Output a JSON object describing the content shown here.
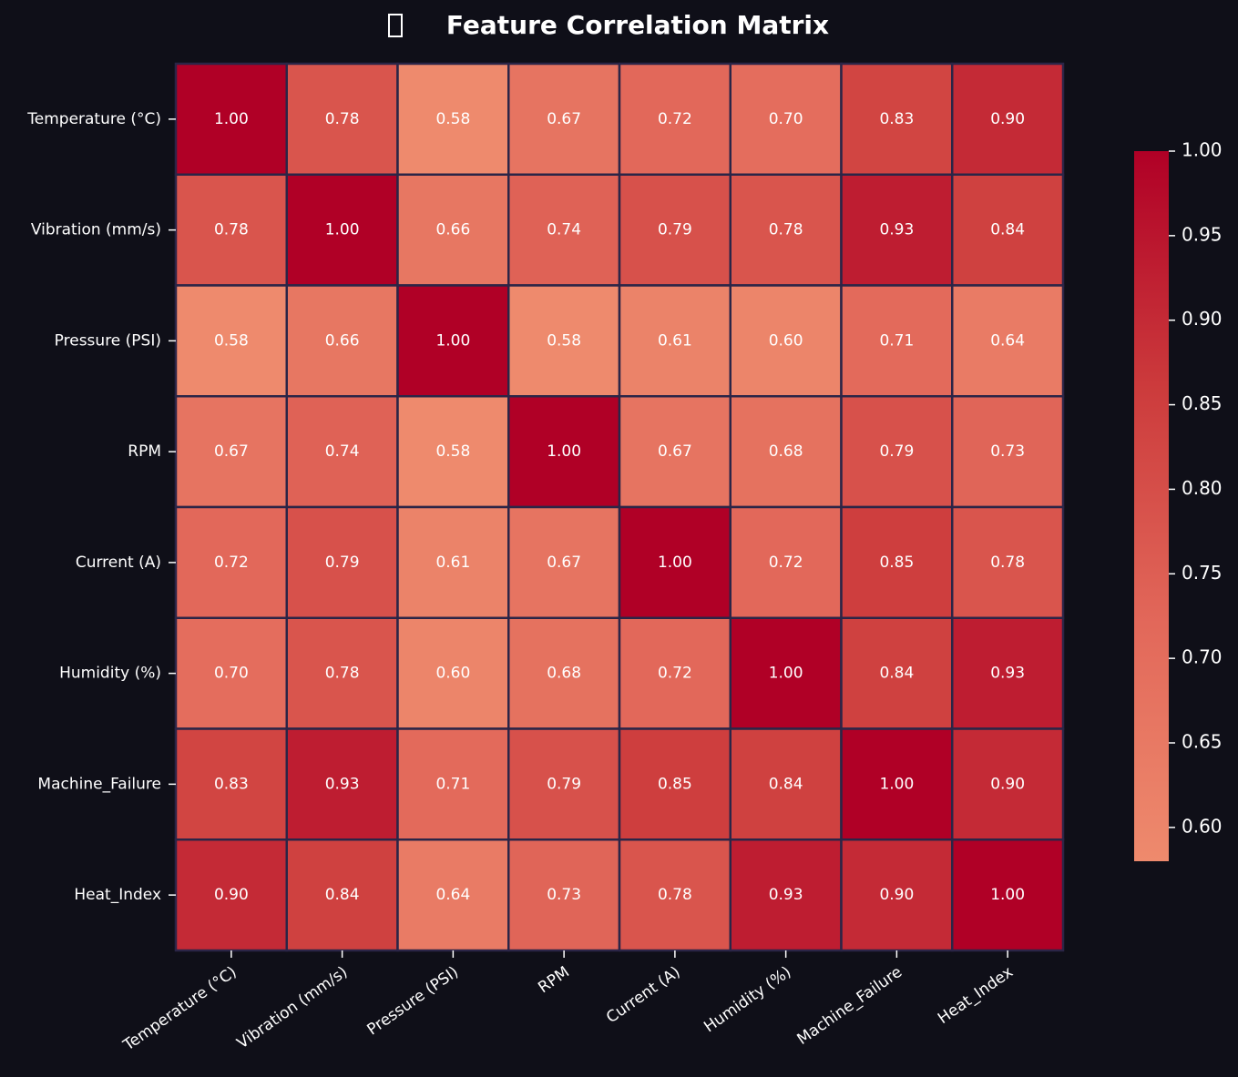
{
  "chart_data": {
    "type": "heatmap",
    "title": "Feature Correlation Matrix",
    "rows": [
      "Temperature (°C)",
      "Vibration (mm/s)",
      "Pressure (PSI)",
      "RPM",
      "Current (A)",
      "Humidity (%)",
      "Machine_Failure",
      "Heat_Index"
    ],
    "columns": [
      "Temperature (°C)",
      "Vibration (mm/s)",
      "Pressure (PSI)",
      "RPM",
      "Current (A)",
      "Humidity (%)",
      "Machine_Failure",
      "Heat_Index"
    ],
    "values": [
      [
        1.0,
        0.78,
        0.58,
        0.67,
        0.72,
        0.7,
        0.83,
        0.9
      ],
      [
        0.78,
        1.0,
        0.66,
        0.74,
        0.79,
        0.78,
        0.93,
        0.84
      ],
      [
        0.58,
        0.66,
        1.0,
        0.58,
        0.61,
        0.6,
        0.71,
        0.64
      ],
      [
        0.67,
        0.74,
        0.58,
        1.0,
        0.67,
        0.68,
        0.79,
        0.73
      ],
      [
        0.72,
        0.79,
        0.61,
        0.67,
        1.0,
        0.72,
        0.85,
        0.78
      ],
      [
        0.7,
        0.78,
        0.6,
        0.68,
        0.72,
        1.0,
        0.84,
        0.93
      ],
      [
        0.83,
        0.93,
        0.71,
        0.79,
        0.85,
        0.84,
        1.0,
        0.9
      ],
      [
        0.9,
        0.84,
        0.64,
        0.73,
        0.78,
        0.93,
        0.9,
        1.0
      ]
    ],
    "value_labels": [
      [
        "1.00",
        "0.78",
        "0.58",
        "0.67",
        "0.72",
        "0.70",
        "0.83",
        "0.90"
      ],
      [
        "0.78",
        "1.00",
        "0.66",
        "0.74",
        "0.79",
        "0.78",
        "0.93",
        "0.84"
      ],
      [
        "0.58",
        "0.66",
        "1.00",
        "0.58",
        "0.61",
        "0.60",
        "0.71",
        "0.64"
      ],
      [
        "0.67",
        "0.74",
        "0.58",
        "1.00",
        "0.67",
        "0.68",
        "0.79",
        "0.73"
      ],
      [
        "0.72",
        "0.79",
        "0.61",
        "0.67",
        "1.00",
        "0.72",
        "0.85",
        "0.78"
      ],
      [
        "0.70",
        "0.78",
        "0.60",
        "0.68",
        "0.72",
        "1.00",
        "0.84",
        "0.93"
      ],
      [
        "0.83",
        "0.93",
        "0.71",
        "0.79",
        "0.85",
        "0.84",
        "1.00",
        "0.90"
      ],
      [
        "0.90",
        "0.84",
        "0.64",
        "0.73",
        "0.78",
        "0.93",
        "0.90",
        "1.00"
      ]
    ],
    "colors": [
      "#ee8a6d",
      "#e2685a",
      "#cc3b3c",
      "#b00026"
    ],
    "zlim": [
      0.58,
      1.0
    ],
    "zticks": [
      {
        "value": 0.6,
        "label": "0.60"
      },
      {
        "value": 0.65,
        "label": "0.65"
      },
      {
        "value": 0.7,
        "label": "0.70"
      },
      {
        "value": 0.75,
        "label": "0.75"
      },
      {
        "value": 0.8,
        "label": "0.80"
      },
      {
        "value": 0.85,
        "label": "0.85"
      },
      {
        "value": 0.9,
        "label": "0.90"
      },
      {
        "value": 0.95,
        "label": "0.95"
      },
      {
        "value": 1.0,
        "label": "1.00"
      }
    ]
  }
}
